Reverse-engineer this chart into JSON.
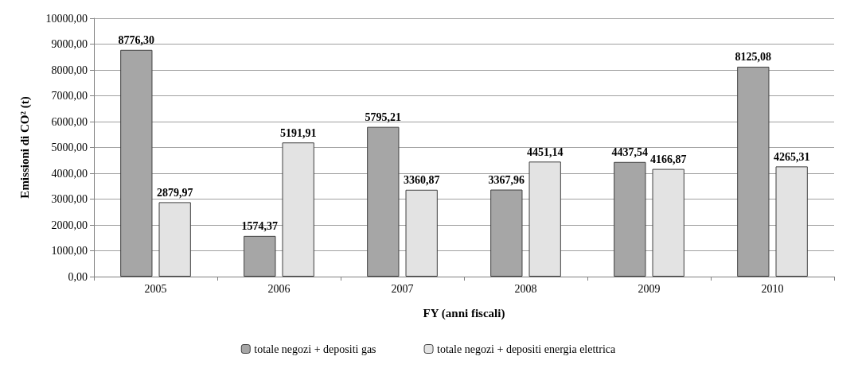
{
  "chart_data": {
    "type": "bar",
    "ylabel": "Emissioni di CO² (t)",
    "xlabel": "FY (anni fiscali)",
    "categories": [
      "2005",
      "2006",
      "2007",
      "2008",
      "2009",
      "2010"
    ],
    "series": [
      {
        "name": "totale negozi + depositi gas",
        "color": "#a6a6a6",
        "values": [
          8776.3,
          1574.37,
          5795.21,
          3367.96,
          4437.54,
          8125.08
        ],
        "value_labels": [
          "8776,30",
          "1574,37",
          "5795,21",
          "3367,96",
          "4437,54",
          "8125,08"
        ]
      },
      {
        "name": "totale negozi + depositi energia elettrica",
        "color": "#e3e3e3",
        "values": [
          2879.97,
          5191.91,
          3360.87,
          4451.14,
          4166.87,
          4265.31
        ],
        "value_labels": [
          "2879,97",
          "5191,91",
          "3360,87",
          "4451,14",
          "4166,87",
          "4265,31"
        ]
      }
    ],
    "ylim": [
      0,
      10000
    ],
    "yticks": [
      {
        "value": 0,
        "label": "0,00"
      },
      {
        "value": 1000,
        "label": "1000,00"
      },
      {
        "value": 2000,
        "label": "2000,00"
      },
      {
        "value": 3000,
        "label": "3000,00"
      },
      {
        "value": 4000,
        "label": "4000,00"
      },
      {
        "value": 5000,
        "label": "5000,00"
      },
      {
        "value": 6000,
        "label": "6000,00"
      },
      {
        "value": 7000,
        "label": "7000,00"
      },
      {
        "value": 8000,
        "label": "8000,00"
      },
      {
        "value": 9000,
        "label": "9000,00"
      },
      {
        "value": 10000,
        "label": "10000,00"
      }
    ],
    "grid": "y",
    "legend": "bottom"
  }
}
